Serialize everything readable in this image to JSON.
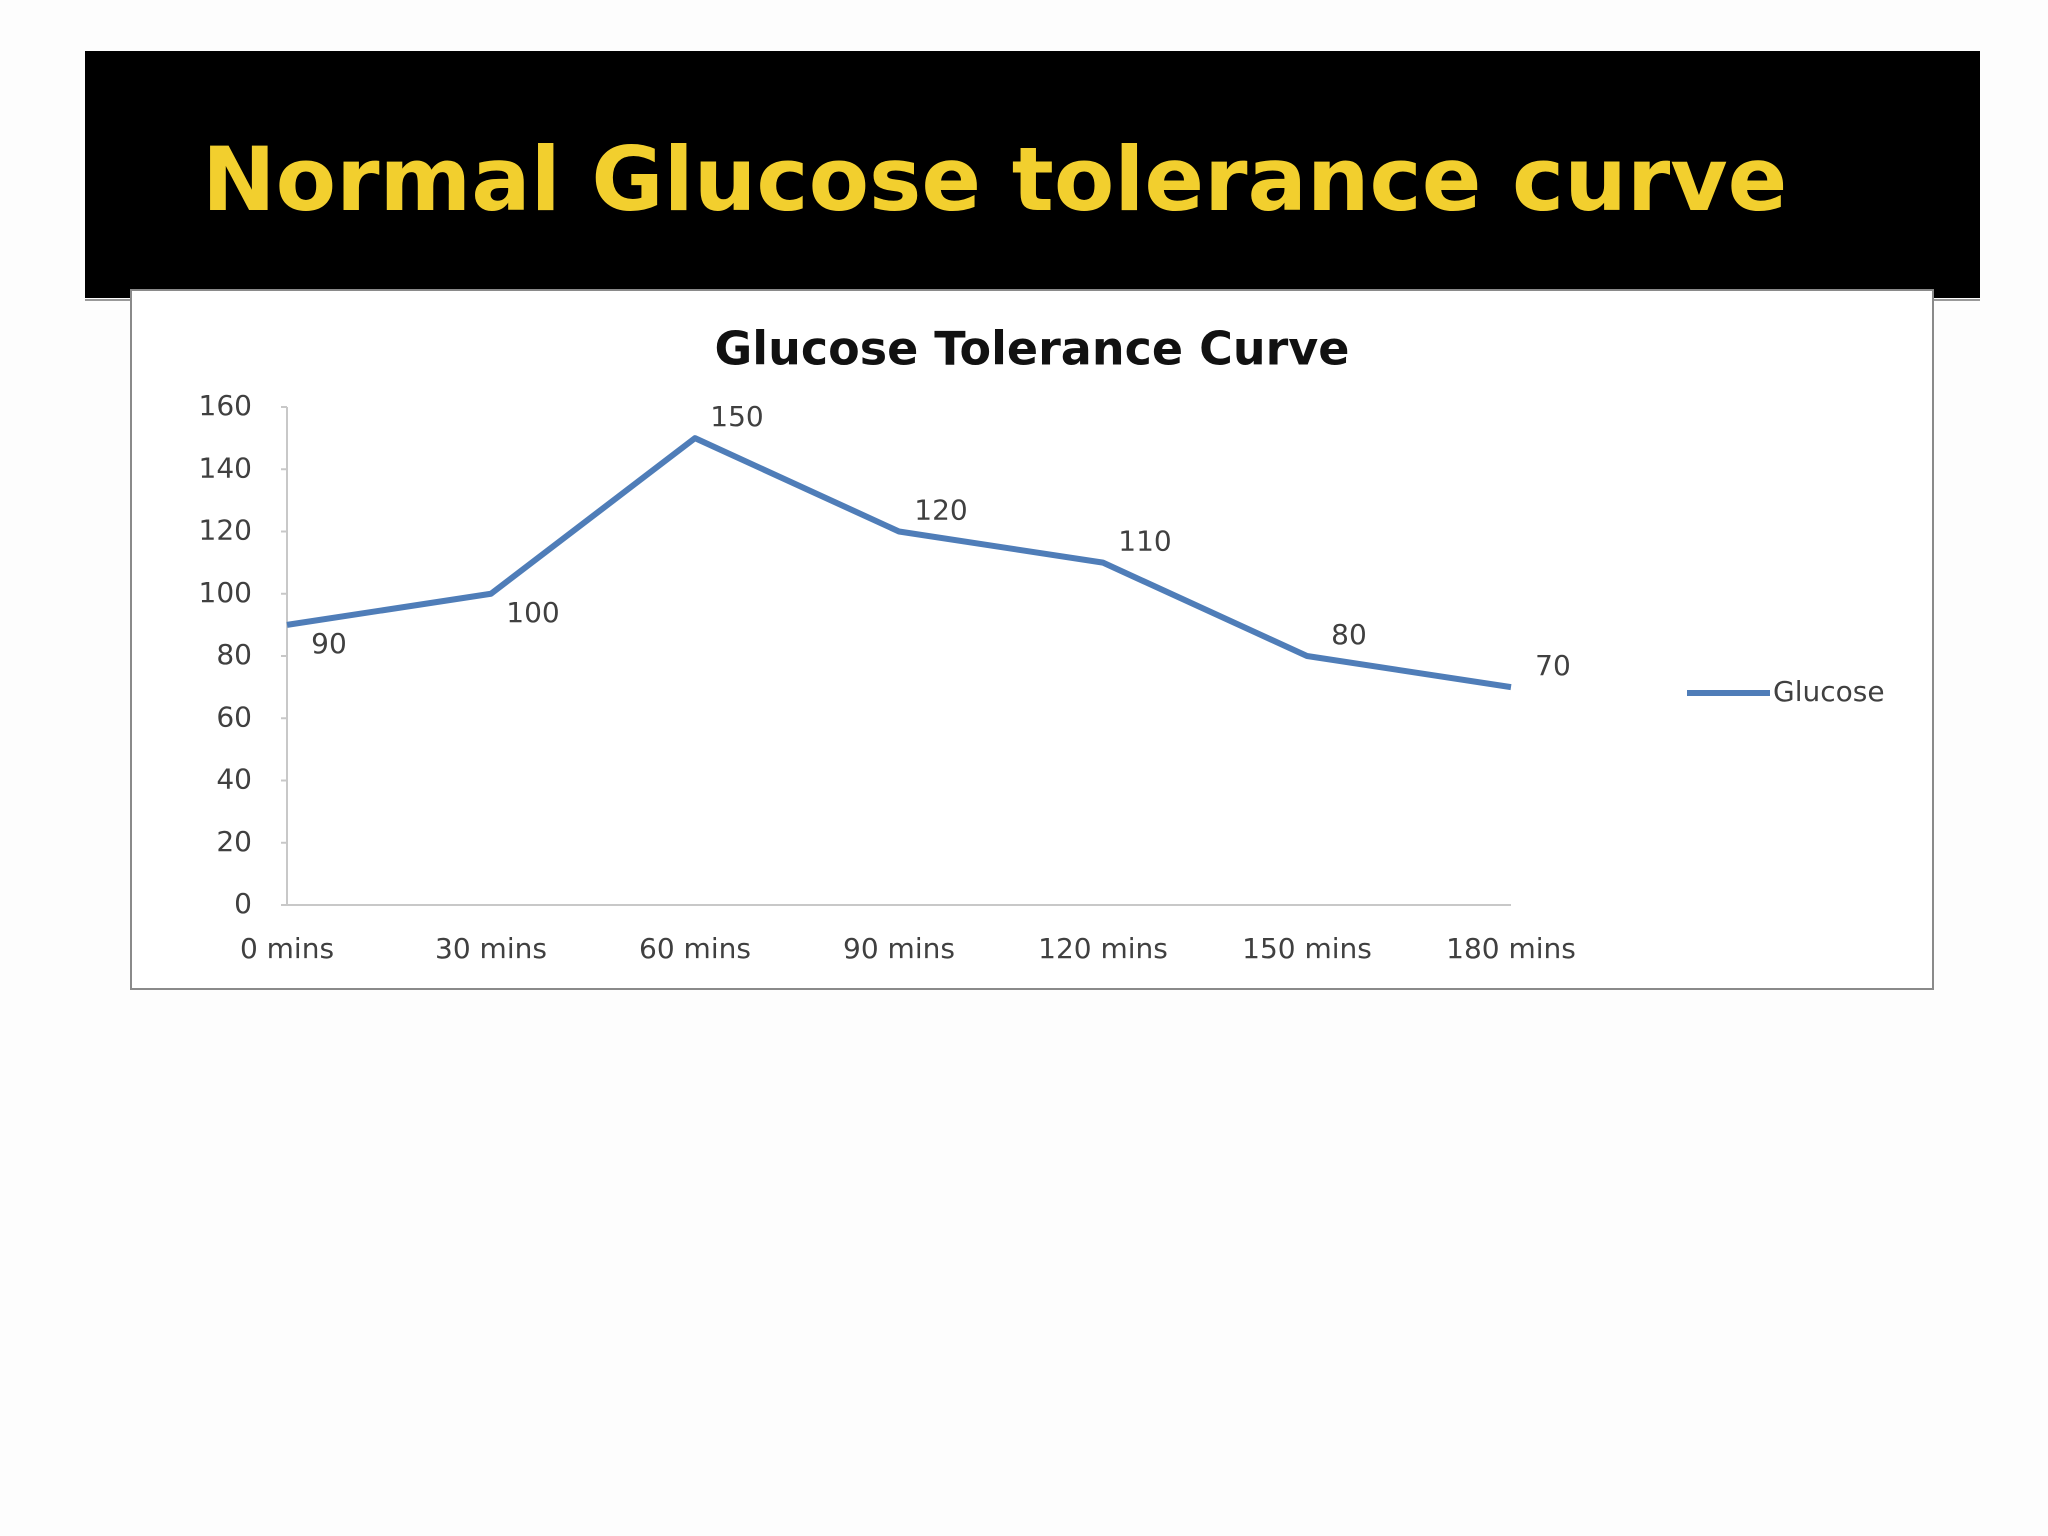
{
  "slide": {
    "title": "Normal Glucose tolerance curve"
  },
  "chart_data": {
    "type": "line",
    "title": "Glucose Tolerance Curve",
    "categories": [
      "0 mins",
      "30 mins",
      "60 mins",
      "90 mins",
      "120 mins",
      "150 mins",
      "180 mins"
    ],
    "series": [
      {
        "name": "Glucose",
        "color": "#4f7db8",
        "values": [
          90,
          100,
          150,
          120,
          110,
          80,
          70
        ]
      }
    ],
    "ylim": [
      0,
      160
    ],
    "yticks": [
      0,
      20,
      40,
      60,
      80,
      100,
      120,
      140,
      160
    ],
    "grid": false,
    "legend": "right"
  }
}
